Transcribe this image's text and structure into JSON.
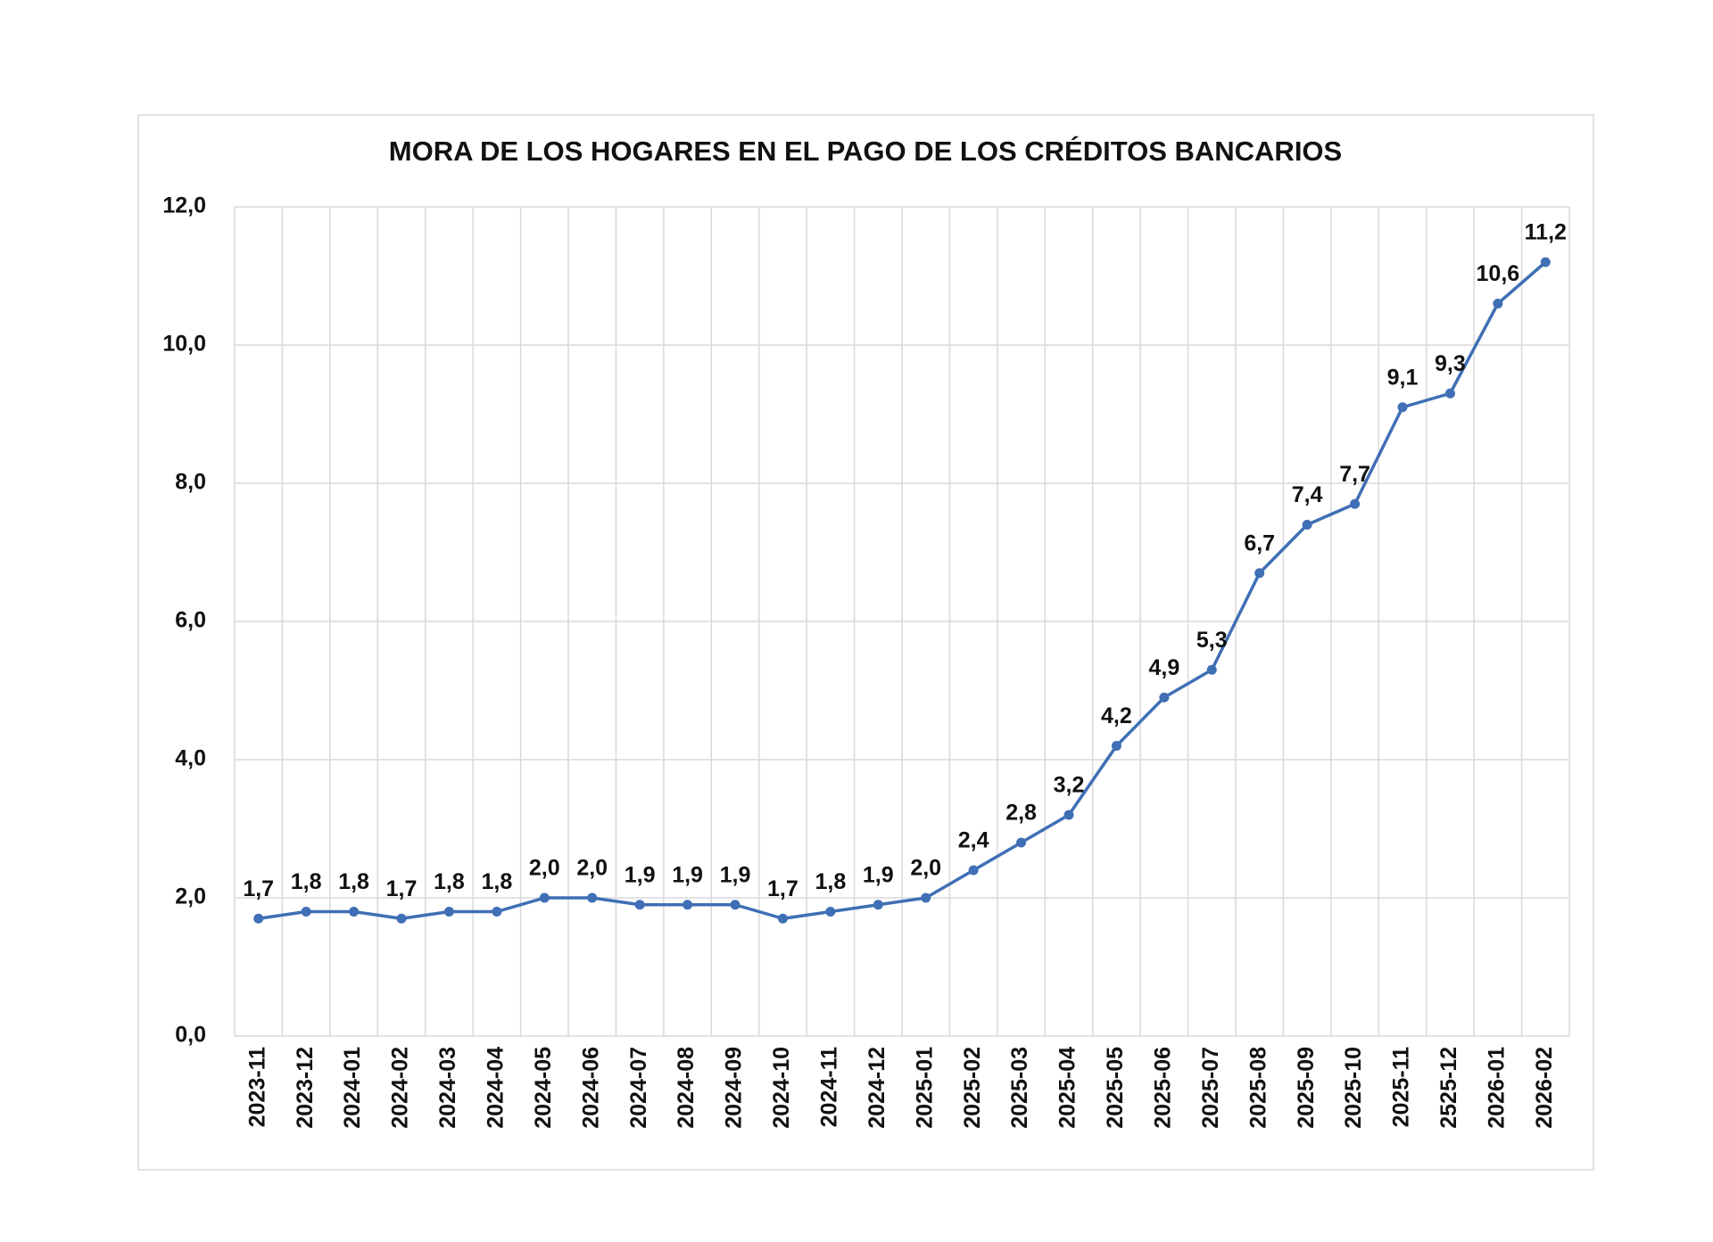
{
  "chart_data": {
    "type": "line",
    "title": "MORA DE LOS HOGARES EN EL PAGO DE LOS CRÉDITOS BANCARIOS",
    "categories": [
      "2023-11",
      "2023-12",
      "2024-01",
      "2024-02",
      "2024-03",
      "2024-04",
      "2024-05",
      "2024-06",
      "2024-07",
      "2024-08",
      "2024-09",
      "2024-10",
      "2024-11",
      "2024-12",
      "2025-01",
      "2025-02",
      "2025-03",
      "2025-04",
      "2025-05",
      "2025-06",
      "2025-07",
      "2025-08",
      "2025-09",
      "2025-10",
      "2025-11",
      "2525-12",
      "2026-01",
      "2026-02"
    ],
    "series": [
      {
        "color": "#3f6fb5",
        "values": [
          1.7,
          1.8,
          1.8,
          1.7,
          1.8,
          1.8,
          2.0,
          2.0,
          1.9,
          1.9,
          1.9,
          1.7,
          1.8,
          1.9,
          2.0,
          2.4,
          2.8,
          3.2,
          4.2,
          4.9,
          5.3,
          6.7,
          7.4,
          7.7,
          9.1,
          9.3,
          10.6,
          11.2
        ],
        "value_labels": [
          "1,7",
          "1,8",
          "1,8",
          "1,7",
          "1,8",
          "1,8",
          "2,0",
          "2,0",
          "1,9",
          "1,9",
          "1,9",
          "1,7",
          "1,8",
          "1,9",
          "2,0",
          "2,4",
          "2,8",
          "3,2",
          "4,2",
          "4,9",
          "5,3",
          "6,7",
          "7,4",
          "7,7",
          "9,1",
          "9,3",
          "10,6",
          "11,2"
        ]
      }
    ],
    "ylim": [
      0,
      12
    ],
    "yticks": [
      {
        "value": 0,
        "label": "0,0"
      },
      {
        "value": 2,
        "label": "2,0"
      },
      {
        "value": 4,
        "label": "4,0"
      },
      {
        "value": 6,
        "label": "6,0"
      },
      {
        "value": 8,
        "label": "8,0"
      },
      {
        "value": 10,
        "label": "10,0"
      },
      {
        "value": 12,
        "label": "12,0"
      }
    ],
    "grid": true
  }
}
